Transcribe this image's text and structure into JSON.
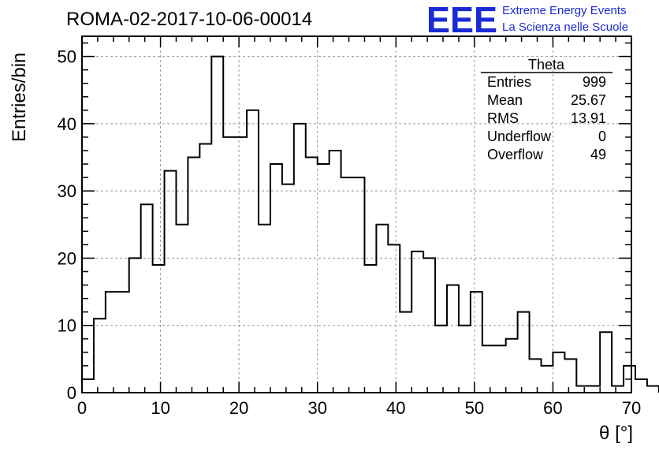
{
  "chart_data": {
    "type": "bar",
    "title": "ROMA-02-2017-10-06-00014",
    "xlabel": "θ [°]",
    "ylabel": "Entries/bin",
    "xlim": [
      0,
      70
    ],
    "ylim": [
      0,
      53
    ],
    "grid": true,
    "bin_width": 1.5,
    "x_ticks": [
      0,
      10,
      20,
      30,
      40,
      50,
      60,
      70
    ],
    "y_ticks": [
      0,
      10,
      20,
      30,
      40,
      50
    ],
    "values": [
      2,
      11,
      15,
      15,
      20,
      28,
      19,
      33,
      25,
      35,
      37,
      50,
      38,
      38,
      42,
      25,
      34,
      31,
      40,
      35,
      34,
      36,
      32,
      32,
      19,
      25,
      22,
      12,
      21,
      20,
      10,
      16,
      10,
      15,
      7,
      7,
      8,
      12,
      5,
      4,
      6,
      5,
      1,
      1,
      9,
      1,
      4,
      2,
      1
    ],
    "legend_position": "top-right",
    "stats": {
      "name": "Theta",
      "rows": [
        {
          "label": "Entries",
          "value": "999"
        },
        {
          "label": "Mean",
          "value": "25.67"
        },
        {
          "label": "RMS",
          "value": "13.91"
        },
        {
          "label": "Underflow",
          "value": "0"
        },
        {
          "label": "Overflow",
          "value": "49"
        }
      ]
    }
  },
  "logo": {
    "mark": "EEE",
    "line1": "Extreme Energy Events",
    "line2": "La Scienza nelle Scuole",
    "color": "#1a2bd6"
  }
}
